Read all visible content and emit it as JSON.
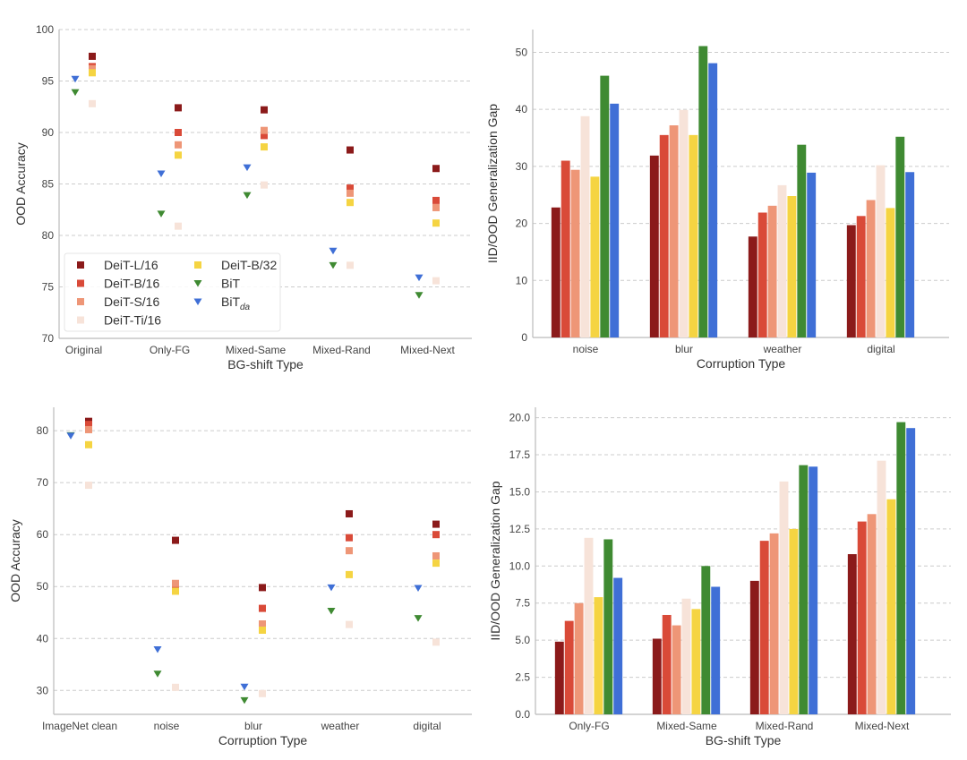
{
  "series": [
    {
      "name": "DeiT-L/16",
      "color": "#8b1a1a",
      "marker": "square"
    },
    {
      "name": "DeiT-B/16",
      "color": "#d94a38",
      "marker": "square"
    },
    {
      "name": "DeiT-S/16",
      "color": "#ee9677",
      "marker": "square"
    },
    {
      "name": "DeiT-Ti/16",
      "color": "#f7e3d9",
      "marker": "square"
    },
    {
      "name": "DeiT-B/32",
      "color": "#f5d442",
      "marker": "square"
    },
    {
      "name": "BiT",
      "color": "#3f8a32",
      "marker": "triangle-down"
    },
    {
      "name": "BiT",
      "sub": "da",
      "color": "#3f6fd6",
      "marker": "triangle-down"
    }
  ],
  "chart_data": [
    {
      "type": "scatter",
      "title": "",
      "xlabel": "BG-shift Type",
      "ylabel": "OOD Accuracy",
      "ylim": [
        70,
        100
      ],
      "yticks": [
        "70",
        "75",
        "80",
        "85",
        "90",
        "95",
        "100"
      ],
      "ytick_values": [
        70,
        75,
        80,
        85,
        90,
        95,
        100
      ],
      "categories": [
        "Original",
        "Only-FG",
        "Mixed-Same",
        "Mixed-Rand",
        "Mixed-Next"
      ],
      "legend": "lower-left",
      "grid": true,
      "values": [
        [
          97.4,
          96.4,
          96.2,
          92.8,
          95.8,
          93.9,
          95.2
        ],
        [
          92.4,
          90.0,
          88.8,
          80.9,
          87.8,
          82.1,
          86.0
        ],
        [
          92.2,
          89.7,
          90.2,
          84.9,
          88.6,
          83.9,
          86.6
        ],
        [
          88.3,
          84.6,
          84.1,
          77.1,
          83.2,
          77.1,
          78.5
        ],
        [
          86.5,
          83.4,
          82.7,
          75.6,
          81.2,
          74.2,
          75.9
        ]
      ]
    },
    {
      "type": "bar",
      "title": "",
      "xlabel": "Corruption Type",
      "ylabel": "IID/OOD Generalization Gap",
      "ylim": [
        0,
        54
      ],
      "yticks": [
        "0",
        "10",
        "20",
        "30",
        "40",
        "50"
      ],
      "ytick_values": [
        0,
        10,
        20,
        30,
        40,
        50
      ],
      "categories": [
        "noise",
        "blur",
        "weather",
        "digital"
      ],
      "grid": true,
      "values": [
        [
          22.8,
          31.0,
          29.4,
          38.8,
          28.2,
          45.9,
          41.0
        ],
        [
          31.9,
          35.5,
          37.2,
          39.9,
          35.5,
          51.1,
          48.1
        ],
        [
          17.7,
          21.9,
          23.1,
          26.7,
          24.8,
          33.8,
          28.9
        ],
        [
          19.7,
          21.3,
          24.1,
          30.2,
          22.7,
          35.2,
          29.0
        ]
      ]
    },
    {
      "type": "scatter",
      "title": "",
      "xlabel": "Corruption Type",
      "ylabel": "OOD Accuracy",
      "ylim": [
        25.4,
        84.5
      ],
      "yticks": [
        "30",
        "40",
        "50",
        "60",
        "70",
        "80"
      ],
      "ytick_values": [
        30,
        40,
        50,
        60,
        70,
        80
      ],
      "categories": [
        "ImageNet clean",
        "noise",
        "blur",
        "weather",
        "digital"
      ],
      "grid": true,
      "values": [
        [
          81.8,
          81.2,
          80.2,
          69.5,
          77.3,
          79.1,
          79.0
        ],
        [
          58.9,
          50.0,
          50.6,
          30.6,
          49.1,
          33.2,
          37.9
        ],
        [
          49.8,
          45.8,
          42.8,
          29.4,
          41.6,
          28.1,
          30.7
        ],
        [
          64.0,
          59.4,
          56.9,
          42.7,
          52.3,
          45.3,
          49.8
        ],
        [
          62.0,
          60.0,
          55.9,
          39.3,
          54.5,
          43.9,
          49.7
        ]
      ]
    },
    {
      "type": "bar",
      "title": "",
      "xlabel": "BG-shift Type",
      "ylabel": "IID/OOD Generalization Gap",
      "ylim": [
        0,
        20.7
      ],
      "yticks": [
        "0.0",
        "2.5",
        "5.0",
        "7.5",
        "10.0",
        "12.5",
        "15.0",
        "17.5",
        "20.0"
      ],
      "ytick_values": [
        0,
        2.5,
        5,
        7.5,
        10,
        12.5,
        15,
        17.5,
        20
      ],
      "categories": [
        "Only-FG",
        "Mixed-Same",
        "Mixed-Rand",
        "Mixed-Next"
      ],
      "grid": true,
      "values": [
        [
          4.9,
          6.3,
          7.5,
          11.9,
          7.9,
          11.8,
          9.2
        ],
        [
          5.1,
          6.7,
          6.0,
          7.8,
          7.1,
          10.0,
          8.6
        ],
        [
          9.0,
          11.7,
          12.2,
          15.7,
          12.5,
          16.8,
          16.7
        ],
        [
          10.8,
          13.0,
          13.5,
          17.1,
          14.5,
          19.7,
          19.3
        ]
      ]
    }
  ]
}
